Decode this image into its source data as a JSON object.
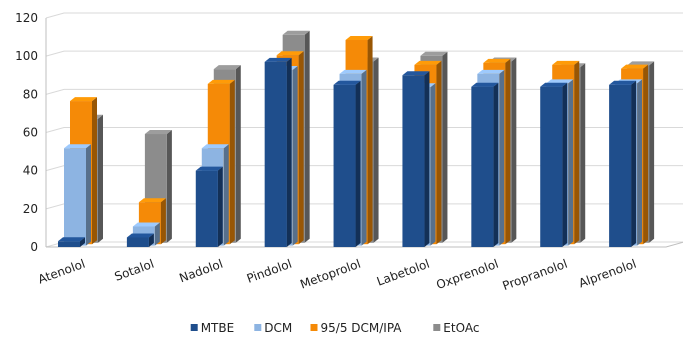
{
  "chart_data": {
    "type": "bar",
    "categories": [
      "Atenolol",
      "Sotalol",
      "Nadolol",
      "Pindolol",
      "Metoprolol",
      "Labetolol",
      "Oxprenolol",
      "Propranolol",
      "Alprenolol"
    ],
    "series": [
      {
        "name": "MTBE",
        "values": [
          3,
          5,
          40,
          97,
          85,
          90,
          84,
          84,
          85
        ],
        "color": "#1F4E8C"
      },
      {
        "name": "DCM",
        "values": [
          51,
          10,
          51,
          92,
          90,
          83,
          90,
          85,
          85
        ],
        "color": "#8DB4E2"
      },
      {
        "name": "95/5 DCM/IPA",
        "values": [
          75,
          22,
          84,
          99,
          107,
          94,
          95,
          94,
          92
        ],
        "color": "#F58A07"
      },
      {
        "name": "EtOAc",
        "values": [
          65,
          57,
          91,
          109,
          95,
          98,
          95,
          92,
          93
        ],
        "color": "#8C8C8C"
      }
    ],
    "yticks": [
      0,
      20,
      40,
      60,
      80,
      100,
      120
    ],
    "ylim": [
      0,
      120
    ],
    "grid": true,
    "legend_position": "bottom"
  }
}
